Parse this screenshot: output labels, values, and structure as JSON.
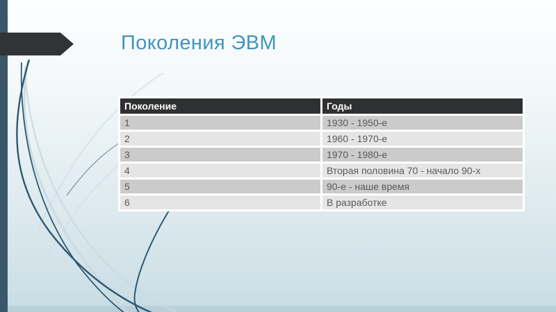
{
  "slide": {
    "title": "Поколения ЭВМ"
  },
  "table": {
    "columns": [
      "Поколение",
      "Годы"
    ],
    "rows": [
      [
        "1",
        "1930 - 1950-е"
      ],
      [
        "2",
        "1960 - 1970-е"
      ],
      [
        "3",
        "1970 - 1980-е"
      ],
      [
        "4",
        "Вторая половина 70 - начало 90-х"
      ],
      [
        "5",
        "90-е - наше время"
      ],
      [
        "6",
        "В разработке"
      ]
    ]
  },
  "chart_data": {
    "type": "table",
    "title": "Поколения ЭВМ",
    "columns": [
      "Поколение",
      "Годы"
    ],
    "rows": [
      [
        "1",
        "1930 - 1950-е"
      ],
      [
        "2",
        "1960 - 1970-е"
      ],
      [
        "3",
        "1970 - 1980-е"
      ],
      [
        "4",
        "Вторая половина 70 - начало 90-х"
      ],
      [
        "5",
        "90-е - наше время"
      ],
      [
        "6",
        "В разработке"
      ]
    ]
  },
  "colors": {
    "title": "#4095bd",
    "header_bg": "#2f3031",
    "header_text": "#ffffff",
    "row_odd_bg": "#cbcbcb",
    "row_even_bg": "#e5e5e5",
    "row_text": "#595959",
    "accent_bar": "#3a566b",
    "arrow": "#323335",
    "curve_dark": "#2d5871",
    "curve_light": "#c9d9e0",
    "bg_top": "#fdfeff",
    "bg_bottom": "#b6ced8"
  }
}
